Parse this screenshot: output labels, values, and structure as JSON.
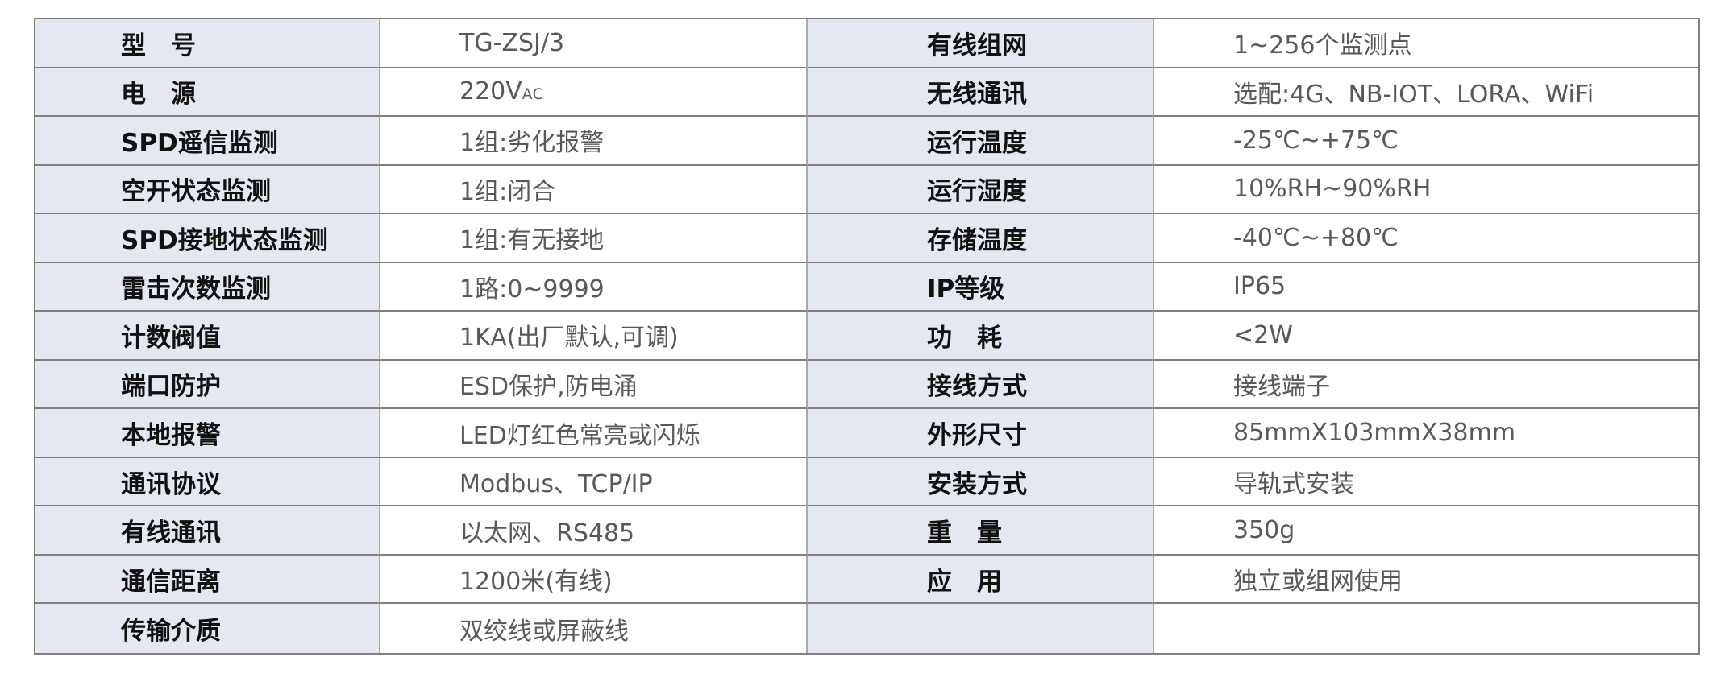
{
  "page": {
    "background": "#ffffff"
  },
  "table": {
    "colors": {
      "label_bg": "#e3e8f1",
      "value_bg": "#ffffff",
      "label_color": "#111111",
      "value_color": "#595959",
      "border_horizontal": "#7f7f7f",
      "border_vertical": "#a9a9a9"
    },
    "rows": [
      {
        "left_label": "型　号",
        "left_value": "TG-ZSJ/3",
        "right_label": "有线组网",
        "right_value": "1~256个监测点"
      },
      {
        "left_label": "电　源",
        "left_value": "220V",
        "left_value_small": "AC",
        "right_label": "无线通讯",
        "right_value": "选配:4G、NB-IOT、LORA、WiFi"
      },
      {
        "left_label": "SPD遥信监测",
        "left_value": "1组:劣化报警",
        "right_label": "运行温度",
        "right_value": "-25℃~+75℃"
      },
      {
        "left_label": "空开状态监测",
        "left_value": "1组:闭合",
        "right_label": "运行湿度",
        "right_value": "10%RH~90%RH"
      },
      {
        "left_label": "SPD接地状态监测",
        "left_value": "1组:有无接地",
        "right_label": "存储温度",
        "right_value": "-40℃~+80℃"
      },
      {
        "left_label": "雷击次数监测",
        "left_value": "1路:0~9999",
        "right_label": "IP等级",
        "right_value": "IP65"
      },
      {
        "left_label": "计数阀值",
        "left_value": "1KA(出厂默认,可调)",
        "right_label": "功　耗",
        "right_value": "<2W"
      },
      {
        "left_label": "端口防护",
        "left_value": "ESD保护,防电涌",
        "right_label": "接线方式",
        "right_value": "接线端子"
      },
      {
        "left_label": "本地报警",
        "left_value": "LED灯红色常亮或闪烁",
        "right_label": "外形尺寸",
        "right_value": "85mmX103mmX38mm"
      },
      {
        "left_label": "通讯协议",
        "left_value": "Modbus、TCP/IP",
        "right_label": "安装方式",
        "right_value": "导轨式安装"
      },
      {
        "left_label": "有线通讯",
        "left_value": "以太网、RS485",
        "right_label": "重　量",
        "right_value": "350g"
      },
      {
        "left_label": "通信距离",
        "left_value": "1200米(有线)",
        "right_label": "应　用",
        "right_value": "独立或组网使用"
      },
      {
        "left_label": "传输介质",
        "left_value": "双绞线或屏蔽线",
        "right_label": "",
        "right_value": ""
      }
    ]
  }
}
